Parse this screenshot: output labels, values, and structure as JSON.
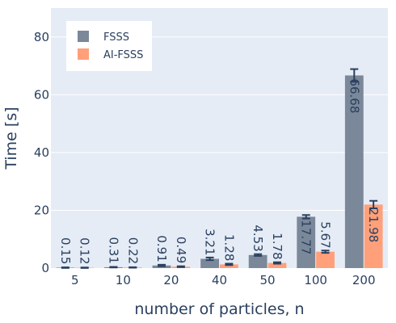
{
  "chart_data": {
    "type": "bar",
    "categories": [
      "5",
      "10",
      "20",
      "40",
      "50",
      "100",
      "200"
    ],
    "series": [
      {
        "name": "FSSS",
        "color": "#7a8899",
        "values": [
          0.15,
          0.31,
          0.91,
          3.21,
          4.53,
          17.77,
          66.68
        ],
        "labels": [
          "0.15",
          "0.31",
          "0.91",
          "3.21",
          "4.53",
          "17.77",
          "66.68"
        ],
        "error": [
          0.1,
          0.1,
          0.25,
          0.45,
          0.3,
          0.6,
          2.2
        ]
      },
      {
        "name": "AI-FSSS",
        "color": "#ffa07a",
        "values": [
          0.12,
          0.22,
          0.49,
          1.28,
          1.78,
          5.67,
          21.98
        ],
        "labels": [
          "0.12",
          "0.22",
          "0.49",
          "1.28",
          "1.78",
          "5.67",
          "21.98"
        ],
        "error": [
          0.08,
          0.08,
          0.15,
          0.25,
          0.25,
          0.4,
          1.3
        ]
      }
    ],
    "xlabel": "number of particles, n",
    "ylabel": "Time [s]",
    "ylim": [
      0,
      90
    ],
    "yticks": [
      0,
      20,
      40,
      60,
      80
    ],
    "grid": true,
    "legend_position": "top-left",
    "colors": {
      "plot_bg": "#e5ecf6",
      "grid": "#ffffff",
      "text": "#2a3f5f",
      "error_bar": "#2a3f5f"
    }
  }
}
